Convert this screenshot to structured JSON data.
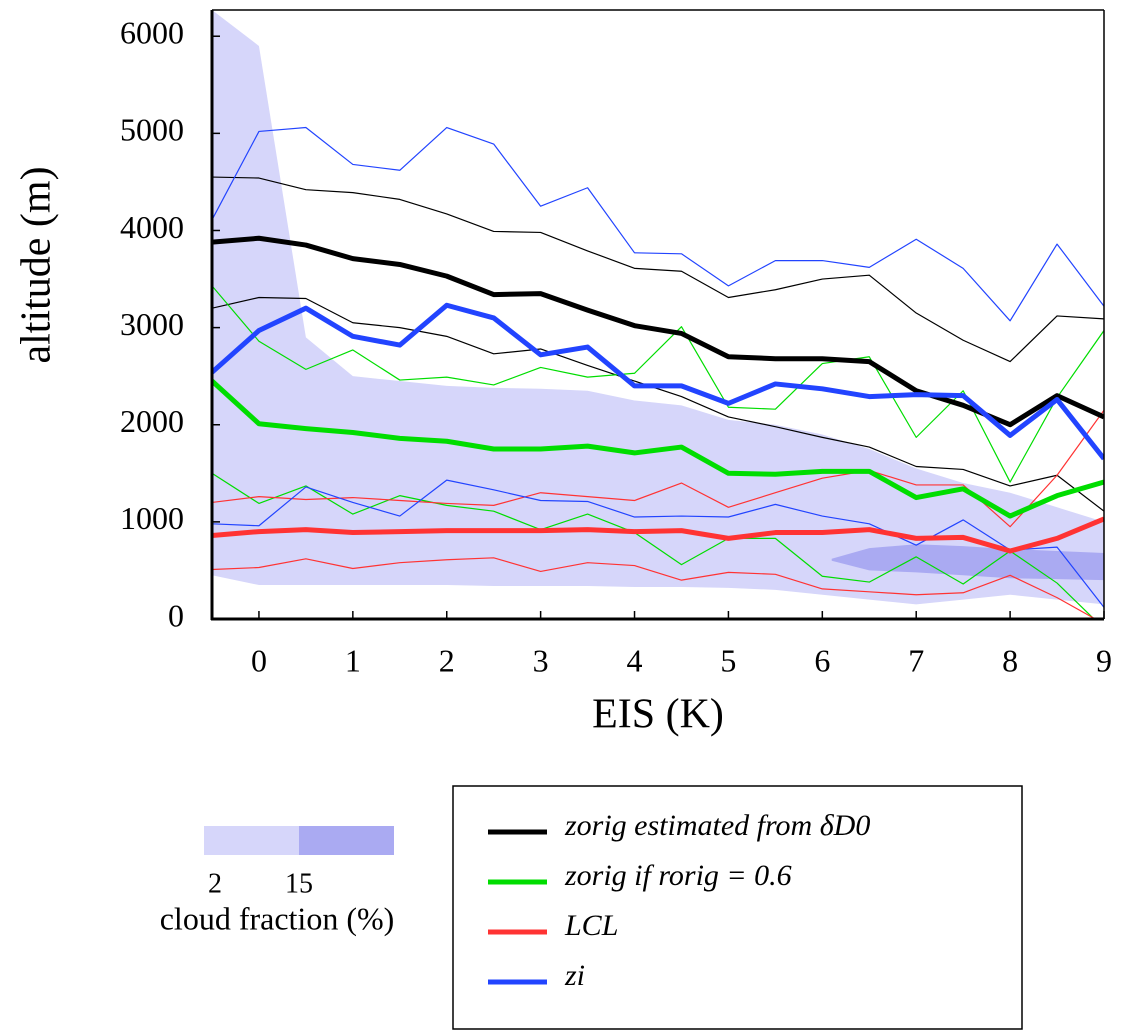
{
  "chart_data": {
    "type": "line",
    "xlabel": "EIS (K)",
    "ylabel": "altitude (m)",
    "xlim": [
      -0.5,
      9
    ],
    "ylim": [
      0,
      6270
    ],
    "xticks": [
      0,
      1,
      2,
      3,
      4,
      5,
      6,
      7,
      8,
      9
    ],
    "yticks": [
      0,
      1000,
      2000,
      3000,
      4000,
      5000,
      6000
    ],
    "x": [
      -0.5,
      0,
      0.5,
      1,
      1.5,
      2,
      2.5,
      3,
      3.5,
      4,
      4.5,
      5,
      5.5,
      6,
      6.5,
      7,
      7.5,
      8,
      8.5,
      9
    ],
    "areas": [
      {
        "color": "#d6d6fa",
        "x": [
          -0.5,
          0,
          0.5,
          1,
          1.5,
          2,
          2.5,
          3,
          3.5,
          4,
          4.5,
          5,
          5.5,
          6,
          6.5,
          7,
          7.5,
          8,
          8.5,
          9
        ],
        "lower": [
          450,
          350,
          350,
          350,
          350,
          350,
          340,
          340,
          340,
          330,
          330,
          320,
          300,
          250,
          200,
          150,
          200,
          250,
          200,
          150
        ],
        "upper": [
          6270,
          5900,
          2900,
          2500,
          2450,
          2400,
          2380,
          2370,
          2350,
          2250,
          2200,
          2050,
          2000,
          1900,
          1750,
          1550,
          1400,
          1300,
          1150,
          1000
        ]
      },
      {
        "color": "#aaaaf2",
        "x": [
          6.1,
          6.5,
          7,
          7.5,
          8,
          8.5,
          9
        ],
        "lower": [
          600,
          500,
          480,
          450,
          420,
          410,
          400
        ],
        "upper": [
          620,
          730,
          770,
          750,
          720,
          700,
          680
        ]
      }
    ],
    "series": [
      {
        "name": "zorig estimated from δD0",
        "color": "#000000",
        "width": 5,
        "values": [
          3880,
          3920,
          3850,
          3710,
          3650,
          3530,
          3340,
          3350,
          3180,
          3020,
          2940,
          2700,
          2680,
          2680,
          2650,
          2350,
          2200,
          2000,
          2300,
          2080
        ]
      },
      {
        "color": "#000000",
        "width": 1.2,
        "values": [
          4550,
          4540,
          4420,
          4390,
          4320,
          4170,
          3990,
          3980,
          3790,
          3610,
          3580,
          3310,
          3390,
          3500,
          3540,
          3150,
          2870,
          2650,
          3120,
          3090
        ]
      },
      {
        "color": "#000000",
        "width": 1.2,
        "values": [
          3200,
          3310,
          3300,
          3050,
          3000,
          2910,
          2730,
          2780,
          2610,
          2450,
          2290,
          2080,
          1980,
          1870,
          1770,
          1570,
          1540,
          1370,
          1480,
          1110
        ]
      },
      {
        "name": "zorig if rorig = 0.6",
        "color": "#00dd00",
        "width": 5,
        "values": [
          2450,
          2010,
          1960,
          1920,
          1860,
          1830,
          1750,
          1750,
          1780,
          1710,
          1770,
          1500,
          1490,
          1520,
          1520,
          1250,
          1340,
          1060,
          1270,
          1410
        ]
      },
      {
        "color": "#00dd00",
        "width": 1.2,
        "values": [
          3430,
          2860,
          2570,
          2770,
          2460,
          2490,
          2410,
          2590,
          2490,
          2530,
          3010,
          2180,
          2160,
          2630,
          2700,
          1870,
          2350,
          1410,
          2280,
          2970
        ]
      },
      {
        "color": "#00dd00",
        "width": 1.2,
        "values": [
          1500,
          1190,
          1370,
          1080,
          1270,
          1170,
          1110,
          920,
          1080,
          890,
          560,
          830,
          830,
          440,
          380,
          640,
          360,
          700,
          370,
          -100
        ]
      },
      {
        "name": "LCL",
        "color": "#ff3333",
        "width": 5,
        "values": [
          860,
          900,
          920,
          890,
          900,
          910,
          910,
          910,
          920,
          900,
          910,
          830,
          890,
          890,
          920,
          830,
          840,
          700,
          830,
          1030
        ]
      },
      {
        "color": "#ff3333",
        "width": 1.2,
        "values": [
          1200,
          1260,
          1230,
          1250,
          1220,
          1190,
          1170,
          1300,
          1260,
          1220,
          1400,
          1150,
          1300,
          1450,
          1530,
          1380,
          1380,
          950,
          1480,
          2150
        ]
      },
      {
        "color": "#ff3333",
        "width": 1.2,
        "values": [
          510,
          530,
          620,
          520,
          580,
          610,
          630,
          490,
          580,
          550,
          400,
          480,
          460,
          310,
          280,
          250,
          270,
          450,
          220,
          -50
        ]
      },
      {
        "name": "zi",
        "color": "#2244ff",
        "width": 5,
        "values": [
          2540,
          2970,
          3200,
          2910,
          2820,
          3230,
          3100,
          2720,
          2800,
          2400,
          2400,
          2220,
          2420,
          2370,
          2290,
          2310,
          2300,
          1890,
          2260,
          1650
        ]
      },
      {
        "color": "#2244ff",
        "width": 1.2,
        "values": [
          4110,
          5020,
          5060,
          4680,
          4620,
          5060,
          4890,
          4250,
          4440,
          3770,
          3760,
          3430,
          3690,
          3690,
          3620,
          3910,
          3610,
          3070,
          3860,
          3220
        ]
      },
      {
        "color": "#2244ff",
        "width": 1.2,
        "values": [
          980,
          960,
          1360,
          1200,
          1060,
          1430,
          1330,
          1220,
          1210,
          1050,
          1060,
          1050,
          1180,
          1060,
          980,
          760,
          1020,
          710,
          740,
          120
        ]
      }
    ],
    "colorbar": {
      "title": "cloud fraction (%)",
      "ticks": [
        2,
        15
      ],
      "colors": [
        "#d6d6fa",
        "#aaaaf2"
      ]
    }
  }
}
